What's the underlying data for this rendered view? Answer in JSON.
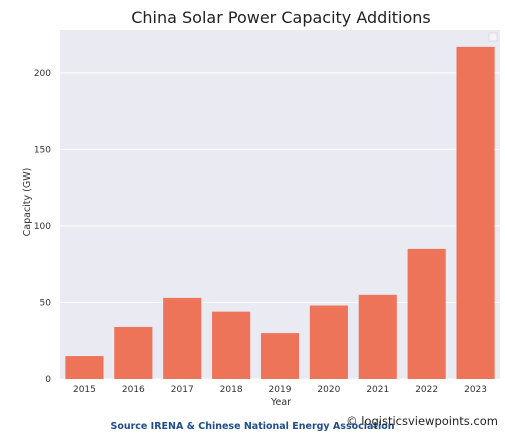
{
  "chart_data": {
    "type": "bar",
    "title": "China Solar Power Capacity Additions",
    "xlabel": "Year",
    "ylabel": "Capacity (GW)",
    "categories": [
      "2015",
      "2016",
      "2017",
      "2018",
      "2019",
      "2020",
      "2021",
      "2022",
      "2023"
    ],
    "values": [
      15,
      34,
      53,
      44,
      30,
      48,
      55,
      85,
      217
    ],
    "ylim": [
      0,
      228
    ],
    "yticks": [
      0,
      50,
      100,
      150,
      200
    ],
    "grid": true,
    "legend": "top-right",
    "bar_color": "#ee7459",
    "plot_background": "#eaeaf2"
  },
  "footer": {
    "source": "Source IRENA & Chinese National Energy Association",
    "watermark": "© logisticsviewpoints.com"
  }
}
